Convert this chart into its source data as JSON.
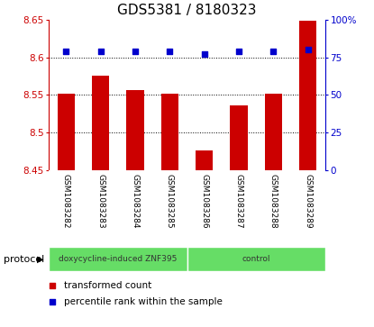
{
  "title": "GDS5381 / 8180323",
  "samples": [
    "GSM1083282",
    "GSM1083283",
    "GSM1083284",
    "GSM1083285",
    "GSM1083286",
    "GSM1083287",
    "GSM1083288",
    "GSM1083289"
  ],
  "bar_values": [
    8.552,
    8.576,
    8.556,
    8.552,
    8.476,
    8.536,
    8.552,
    8.648
  ],
  "percentile_values": [
    79,
    79,
    79,
    79,
    77,
    79,
    79,
    80
  ],
  "y_min": 8.45,
  "y_max": 8.65,
  "y_ticks": [
    8.45,
    8.5,
    8.55,
    8.6,
    8.65
  ],
  "y2_ticks": [
    0,
    25,
    50,
    75,
    100
  ],
  "grid_lines": [
    8.5,
    8.55,
    8.6
  ],
  "bar_color": "#cc0000",
  "dot_color": "#0000cc",
  "background_color": "#ffffff",
  "protocol_groups": [
    {
      "label": "doxycycline-induced ZNF395",
      "start": 0,
      "end": 4,
      "color": "#66dd66"
    },
    {
      "label": "control",
      "start": 4,
      "end": 8,
      "color": "#66dd66"
    }
  ],
  "legend_bar_label": "transformed count",
  "legend_dot_label": "percentile rank within the sample",
  "protocol_label": "protocol",
  "title_fontsize": 11,
  "tick_fontsize": 7.5,
  "sample_label_fontsize": 6.5,
  "proto_label_fontsize": 6.5,
  "legend_fontsize": 7.5,
  "bar_width": 0.5
}
